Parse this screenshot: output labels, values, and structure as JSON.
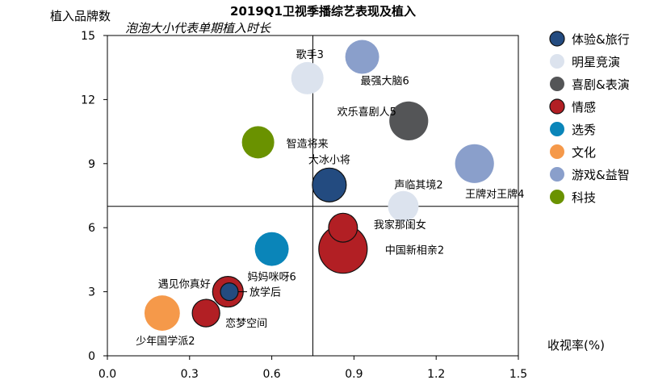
{
  "chart_data": {
    "type": "bubble",
    "title": "2019Q1卫视季播综艺表现及植入",
    "subtitle": "泡泡大小代表单期植入时长",
    "xlabel": "收视率(%)",
    "ylabel": "植入品牌数",
    "xlim": [
      0,
      1.5
    ],
    "ylim": [
      0,
      15
    ],
    "x_ticks": [
      "0.0",
      "0.3",
      "0.6",
      "0.9",
      "1.2",
      "1.5"
    ],
    "y_ticks": [
      "0",
      "3",
      "6",
      "9",
      "12",
      "15"
    ],
    "reference_lines": {
      "x": 0.75,
      "y": 7
    },
    "grid": false,
    "legend_position": "right",
    "categories": [
      {
        "name": "体验&旅行",
        "color": "#234B80"
      },
      {
        "name": "明星竞演",
        "color": "#DCE3EE"
      },
      {
        "name": "喜剧&表演",
        "color": "#545557"
      },
      {
        "name": "情感",
        "color": "#B21F24"
      },
      {
        "name": "选秀",
        "color": "#0A85B9"
      },
      {
        "name": "文化",
        "color": "#F5994A"
      },
      {
        "name": "游戏&益智",
        "color": "#8A9FCB"
      },
      {
        "name": "科技",
        "color": "#6A9200"
      }
    ],
    "points": [
      {
        "label": "歌手3",
        "category": "明星竞演",
        "x": 0.73,
        "y": 13,
        "size": 4.0
      },
      {
        "label": "最强大脑6",
        "category": "游戏&益智",
        "x": 0.93,
        "y": 14,
        "size": 4.4
      },
      {
        "label": "欢乐喜剧人5",
        "category": "喜剧&表演",
        "x": 1.1,
        "y": 11,
        "size": 5.8
      },
      {
        "label": "智造将来",
        "category": "科技",
        "x": 0.55,
        "y": 10,
        "size": 4.0
      },
      {
        "label": "大冰小将",
        "category": "体验&旅行",
        "x": 0.81,
        "y": 8,
        "size": 4.4
      },
      {
        "label": "声临其境2",
        "category": "明星竞演",
        "x": 1.08,
        "y": 7,
        "size": 3.6
      },
      {
        "label": "王牌对王牌4",
        "category": "游戏&益智",
        "x": 1.34,
        "y": 9,
        "size": 5.8
      },
      {
        "label": "中国新相亲2",
        "category": "情感",
        "x": 0.86,
        "y": 5,
        "size": 9.0
      },
      {
        "label": "我家那闺女",
        "category": "情感",
        "x": 0.86,
        "y": 6,
        "size": 3.2
      },
      {
        "label": "妈妈咪呀6",
        "category": "选秀",
        "x": 0.6,
        "y": 5,
        "size": 4.4
      },
      {
        "label": "遇见你真好",
        "category": "情感",
        "x": 0.44,
        "y": 3,
        "size": 3.6
      },
      {
        "label": "放学后",
        "category": "体验&旅行",
        "x": 0.445,
        "y": 3,
        "size": 1.2
      },
      {
        "label": "恋梦空间",
        "category": "情感",
        "x": 0.36,
        "y": 2,
        "size": 2.9
      },
      {
        "label": "少年国学派2",
        "category": "文化",
        "x": 0.2,
        "y": 2,
        "size": 4.8
      }
    ]
  }
}
